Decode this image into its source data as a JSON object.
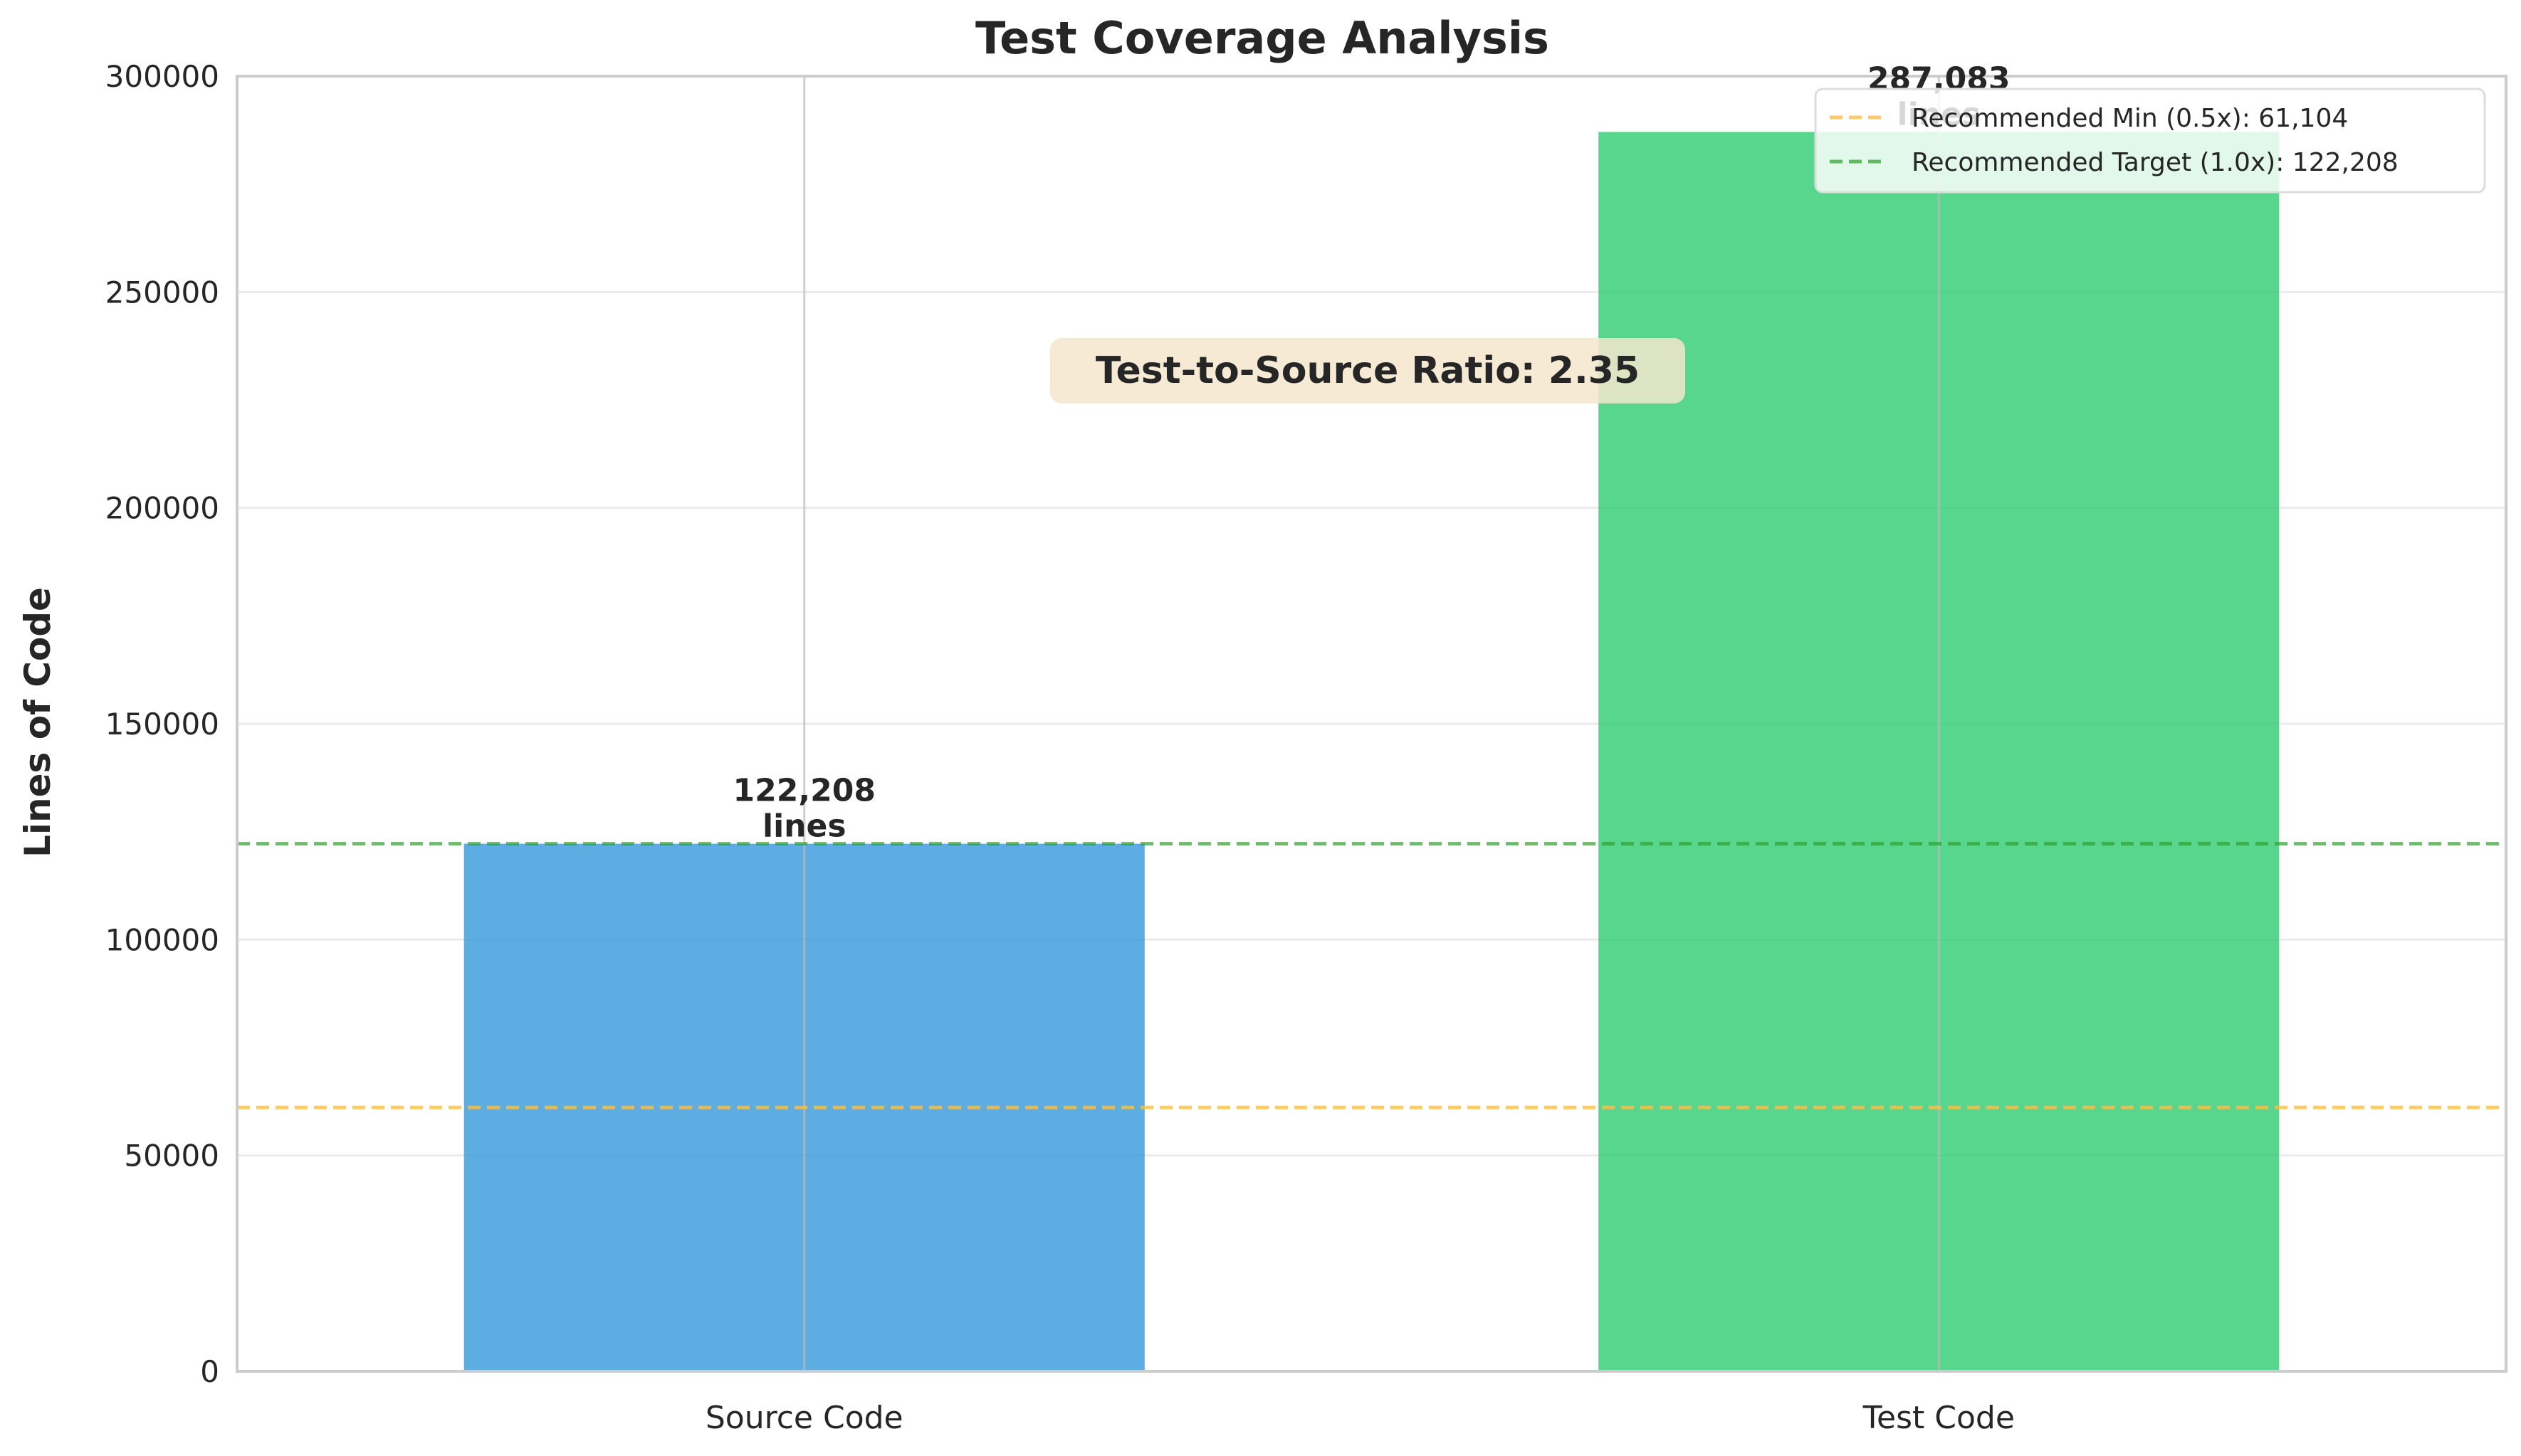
{
  "colors": {
    "background": "#ffffff",
    "axes_edge": "#cccccc",
    "grid": "#ebebeb",
    "text": "#262626",
    "source_bar": "#3498db",
    "test_bar": "#2ecc71",
    "min_line": "#fdbf43",
    "target_line": "#2ca02c",
    "ratio_box": "#f5e6cc"
  },
  "chart_data": {
    "type": "bar",
    "title": "Test Coverage Analysis",
    "xlabel": "",
    "ylabel": "Lines of Code",
    "categories": [
      "Source Code",
      "Test Code"
    ],
    "values": [
      122208,
      287083
    ],
    "bar_labels": [
      "122,208\nlines",
      "287,083\nlines"
    ],
    "ylim": [
      0,
      300000
    ],
    "yticks": [
      0,
      50000,
      100000,
      150000,
      200000,
      250000,
      300000
    ],
    "ytick_labels": [
      "0",
      "50000",
      "100000",
      "150000",
      "200000",
      "250000",
      "300000"
    ],
    "grid": true,
    "reference_lines": [
      {
        "label": "Recommended Min (0.5x): 61,104",
        "value": 61104,
        "style": "dashed",
        "color": "#fdbf43"
      },
      {
        "label": "Recommended Target (1.0x): 122,208",
        "value": 122208,
        "style": "dashed",
        "color": "#2ca02c"
      }
    ],
    "annotation": "Test-to-Source Ratio: 2.35",
    "legend_position": "top-right"
  }
}
